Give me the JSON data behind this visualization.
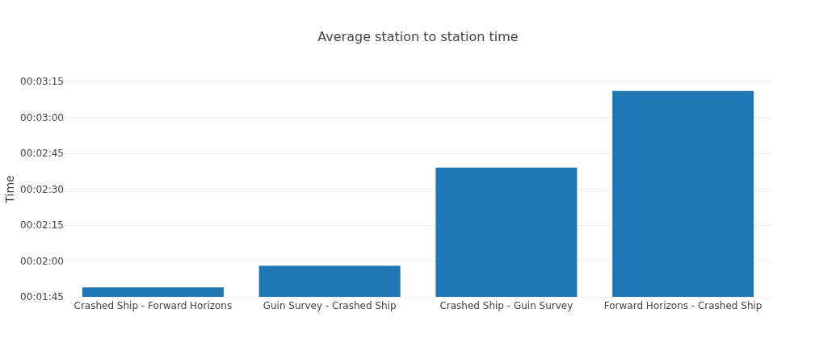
{
  "chart_data": {
    "type": "bar",
    "title": "Average station to station time",
    "ylabel": "Time",
    "categories": [
      "Crashed Ship - Forward Horizons",
      "Guin Survey - Crashed Ship",
      "Crashed Ship - Guin Survey",
      "Forward Horizons - Crashed Ship"
    ],
    "values": [
      109,
      118,
      159,
      191
    ],
    "color": "#1f77b4",
    "ylim": [
      105,
      195
    ],
    "yticks": [
      {
        "value": 105,
        "label": "00:01:45"
      },
      {
        "value": 120,
        "label": "00:02:00"
      },
      {
        "value": 135,
        "label": "00:02:15"
      },
      {
        "value": 150,
        "label": "00:02:30"
      },
      {
        "value": 165,
        "label": "00:02:45"
      },
      {
        "value": 180,
        "label": "00:03:00"
      },
      {
        "value": 195,
        "label": "00:03:15"
      }
    ],
    "grid": "y"
  }
}
